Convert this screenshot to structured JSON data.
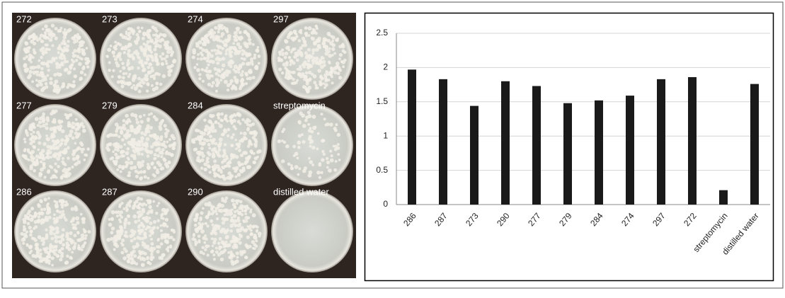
{
  "photo_labels": [
    "272",
    "273",
    "274",
    "297",
    "277",
    "279",
    "284",
    "streptomycin",
    "286",
    "287",
    "290",
    "distilled water"
  ],
  "chart_data": {
    "type": "bar",
    "categories": [
      "286",
      "287",
      "273",
      "290",
      "277",
      "279",
      "284",
      "274",
      "297",
      "272",
      "streptomycin",
      "distilled water"
    ],
    "values": [
      1.97,
      1.83,
      1.44,
      1.8,
      1.73,
      1.48,
      1.52,
      1.59,
      1.83,
      1.86,
      0.21,
      1.76
    ],
    "color": "#1a1a1a",
    "ylim": [
      0,
      2.5
    ],
    "yticks": [
      0,
      0.5,
      1,
      1.5,
      2,
      2.5
    ],
    "grid": true
  }
}
